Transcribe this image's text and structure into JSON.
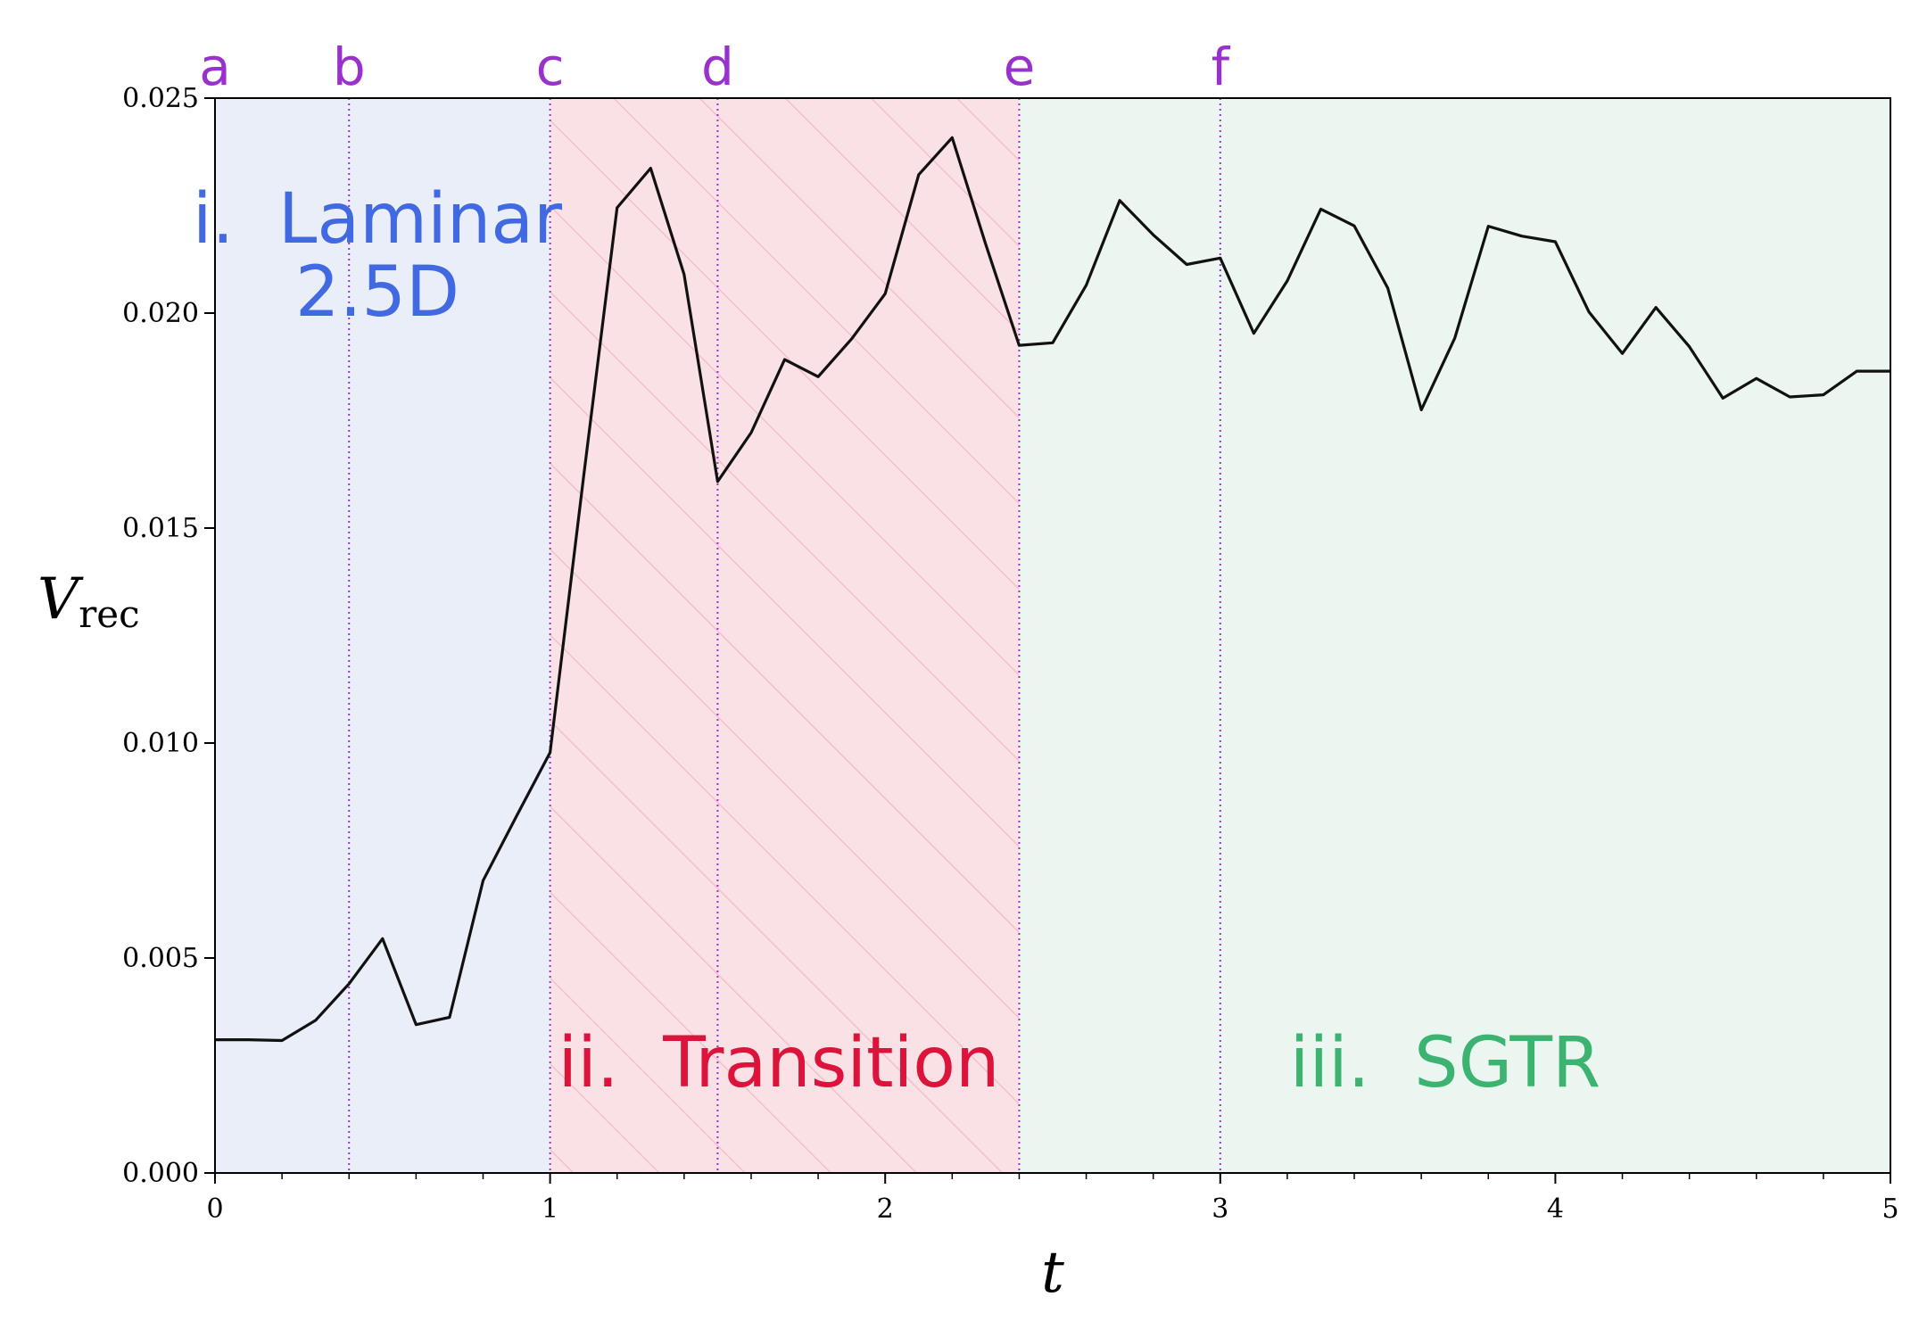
{
  "chart_data": {
    "type": "line",
    "title": "",
    "xlabel": "t",
    "ylabel": "V",
    "ylabel_sub": "rec",
    "xlim": [
      0,
      5
    ],
    "ylim": [
      0,
      0.025
    ],
    "x_ticks": [
      {
        "value": 0,
        "label": "0"
      },
      {
        "value": 1,
        "label": "1"
      },
      {
        "value": 2,
        "label": "2"
      },
      {
        "value": 3,
        "label": "3"
      },
      {
        "value": 4,
        "label": "4"
      },
      {
        "value": 5,
        "label": "5"
      }
    ],
    "y_ticks": [
      {
        "value": 0,
        "label": "0.000"
      },
      {
        "value": 0.005,
        "label": "0.005"
      },
      {
        "value": 0.01,
        "label": "0.010"
      },
      {
        "value": 0.015,
        "label": "0.015"
      },
      {
        "value": 0.02,
        "label": "0.020"
      },
      {
        "value": 0.025,
        "label": "0.025"
      }
    ],
    "x_minor_step": 0.2,
    "grid": false,
    "line_color": "#111111",
    "series": [
      {
        "x": [
          0,
          0.1,
          0.2,
          0.3,
          0.4,
          0.5,
          0.6,
          0.7,
          0.8,
          0.9,
          1.0,
          1.1,
          1.2,
          1.3,
          1.4,
          1.5,
          1.6,
          1.7,
          1.8,
          1.9,
          2.0,
          2.1,
          2.2,
          2.3,
          2.4,
          2.5,
          2.6,
          2.7,
          2.8,
          2.9,
          3.0,
          3.1,
          3.2,
          3.3,
          3.4,
          3.5,
          3.6,
          3.7,
          3.8,
          3.9,
          4.0,
          4.1,
          4.2,
          4.3,
          4.4,
          4.5,
          4.6,
          4.7,
          4.8,
          4.9,
          5.0
        ],
        "values": [
          0.0031,
          0.0031,
          0.00308,
          0.00355,
          0.0044,
          0.00545,
          0.00345,
          0.00362,
          0.0068,
          0.0083,
          0.00978,
          0.0162,
          0.02245,
          0.02337,
          0.0209,
          0.01608,
          0.01722,
          0.01892,
          0.01852,
          0.0194,
          0.02045,
          0.02322,
          0.02408,
          0.0216,
          0.01925,
          0.01931,
          0.02065,
          0.02262,
          0.02182,
          0.02113,
          0.02128,
          0.01953,
          0.02075,
          0.02242,
          0.02203,
          0.02058,
          0.01775,
          0.01942,
          0.02202,
          0.02179,
          0.02166,
          0.02003,
          0.01906,
          0.02013,
          0.01922,
          0.01802,
          0.01848,
          0.01805,
          0.0181,
          0.01865,
          0.01865
        ]
      }
    ],
    "markers": [
      {
        "label": "a",
        "x": 0
      },
      {
        "label": "b",
        "x": 0.4
      },
      {
        "label": "c",
        "x": 1.0
      },
      {
        "label": "d",
        "x": 1.5
      },
      {
        "label": "e",
        "x": 2.4
      },
      {
        "label": "f",
        "x": 3.0
      }
    ],
    "marker_color": "#9932CC",
    "regions": [
      {
        "name": "laminar",
        "x0": 0,
        "x1": 1.0,
        "fill": "#eaeef9",
        "text_color": "#4169E1",
        "label_lines": [
          "i.  Laminar",
          "2.5D"
        ],
        "hatched": false
      },
      {
        "name": "transition",
        "x0": 1.0,
        "x1": 2.4,
        "fill": "#fae1e6",
        "text_color": "#DC143C",
        "label_lines": [
          "ii.  Transition"
        ],
        "hatched": true,
        "hatch_color": "#f4b9c6"
      },
      {
        "name": "sgtr",
        "x0": 2.4,
        "x1": 5.0,
        "fill": "#ecf6f0",
        "text_color": "#3CB371",
        "label_lines": [
          "iii.  SGTR"
        ],
        "hatched": false
      }
    ]
  }
}
